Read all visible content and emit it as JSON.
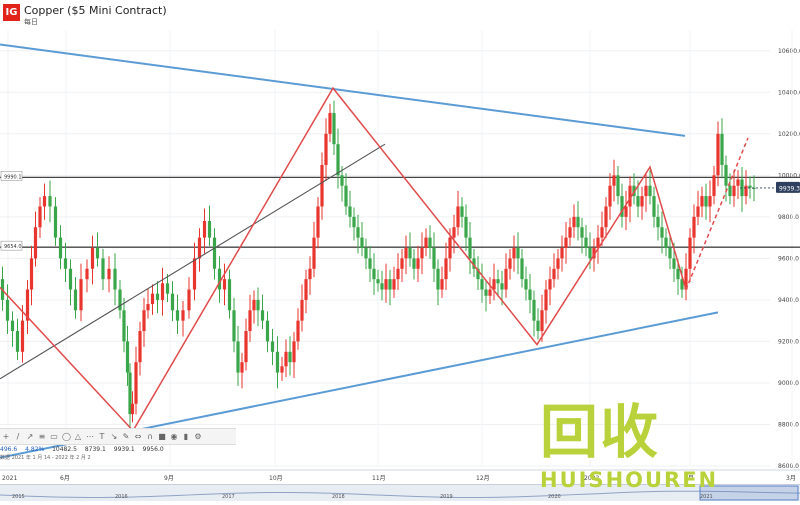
{
  "header": {
    "logo_text": "IG",
    "title": "Copper ($5 Mini Contract)",
    "subtitle": "每日"
  },
  "colors": {
    "up": "#e8352e",
    "down": "#3aa64a",
    "blue_trend": "#5b9bd5",
    "red_pattern": "#e14a4a",
    "grey_trend": "#555555",
    "hline": "#444444",
    "price_badge": "#2f3f5f"
  },
  "toolbar": {
    "icons": [
      "crosshair-icon",
      "line-icon",
      "ray-icon",
      "channel-icon",
      "rectangle-icon",
      "ellipse-icon",
      "triangle-icon",
      "fib-icon",
      "text-icon",
      "arrow-icon",
      "pencil-icon",
      "measure-icon",
      "magnet-icon",
      "lock-icon",
      "eye-icon",
      "trash-icon",
      "settings-icon"
    ]
  },
  "infobar": {
    "items": [
      "496.6",
      "4.82%",
      "10482.5",
      "8739.1",
      "9939.1",
      "9956.0"
    ],
    "range_text": "数据 2021 年 1 月 14 - 2022 年 2 月 2"
  },
  "watermark": {
    "cn": "回收",
    "en": "HUISHOUREN"
  },
  "chart_data": {
    "type": "candlestick",
    "title": "Copper ($5 Mini Contract)",
    "y_axis": {
      "ticks": [
        "10600.0",
        "10400.0",
        "10200.0",
        "10000.0",
        "9800.0",
        "9600.0",
        "9400.0",
        "9200.0",
        "9000.0",
        "8800.0",
        "8600.0"
      ],
      "range": [
        8600,
        10700
      ]
    },
    "x_axis": {
      "labels": [
        "2021",
        "6月",
        "9月",
        "10月",
        "11月",
        "12月",
        "2022",
        "2月",
        "3月"
      ]
    },
    "navigator_labels": [
      "2015",
      "2016",
      "2017",
      "2018",
      "2019",
      "2020",
      "2021"
    ],
    "horizontal_levels": [
      {
        "label": "9990.1",
        "value": 9990
      },
      {
        "label": "9654.0",
        "value": 9654
      }
    ],
    "current_price": "9939.3",
    "price_path": [
      [
        0,
        9500
      ],
      [
        5,
        9400
      ],
      [
        10,
        9300
      ],
      [
        15,
        9250
      ],
      [
        20,
        9150
      ],
      [
        25,
        9300
      ],
      [
        30,
        9450
      ],
      [
        33,
        9600
      ],
      [
        38,
        9750
      ],
      [
        42,
        9850
      ],
      [
        47,
        9900
      ],
      [
        53,
        9850
      ],
      [
        58,
        9700
      ],
      [
        63,
        9600
      ],
      [
        68,
        9550
      ],
      [
        73,
        9450
      ],
      [
        78,
        9350
      ],
      [
        84,
        9500
      ],
      [
        90,
        9550
      ],
      [
        95,
        9650
      ],
      [
        100,
        9600
      ],
      [
        106,
        9500
      ],
      [
        112,
        9550
      ],
      [
        118,
        9450
      ],
      [
        122,
        9350
      ],
      [
        126,
        9200
      ],
      [
        129,
        9050
      ],
      [
        131,
        8850
      ],
      [
        134,
        8900
      ],
      [
        138,
        9100
      ],
      [
        142,
        9250
      ],
      [
        146,
        9350
      ],
      [
        150,
        9380
      ],
      [
        155,
        9430
      ],
      [
        160,
        9400
      ],
      [
        165,
        9480
      ],
      [
        170,
        9430
      ],
      [
        175,
        9350
      ],
      [
        180,
        9300
      ],
      [
        186,
        9350
      ],
      [
        192,
        9450
      ],
      [
        197,
        9600
      ],
      [
        202,
        9700
      ],
      [
        207,
        9780
      ],
      [
        212,
        9700
      ],
      [
        217,
        9550
      ],
      [
        222,
        9450
      ],
      [
        227,
        9500
      ],
      [
        232,
        9350
      ],
      [
        236,
        9200
      ],
      [
        240,
        9050
      ],
      [
        244,
        9100
      ],
      [
        248,
        9250
      ],
      [
        252,
        9350
      ],
      [
        256,
        9400
      ],
      [
        260,
        9350
      ],
      [
        265,
        9300
      ],
      [
        270,
        9200
      ],
      [
        275,
        9150
      ],
      [
        280,
        9050
      ],
      [
        284,
        9080
      ],
      [
        288,
        9150
      ],
      [
        292,
        9100
      ],
      [
        296,
        9200
      ],
      [
        300,
        9300
      ],
      [
        304,
        9400
      ],
      [
        308,
        9500
      ],
      [
        312,
        9550
      ],
      [
        316,
        9700
      ],
      [
        320,
        9850
      ],
      [
        324,
        10050
      ],
      [
        328,
        10200
      ],
      [
        332,
        10300
      ],
      [
        336,
        10150
      ],
      [
        340,
        10000
      ],
      [
        344,
        9950
      ],
      [
        348,
        9850
      ],
      [
        352,
        9800
      ],
      [
        356,
        9750
      ],
      [
        360,
        9700
      ],
      [
        364,
        9650
      ],
      [
        368,
        9600
      ],
      [
        372,
        9550
      ],
      [
        376,
        9500
      ],
      [
        380,
        9480
      ],
      [
        384,
        9450
      ],
      [
        388,
        9500
      ],
      [
        392,
        9450
      ],
      [
        396,
        9500
      ],
      [
        400,
        9550
      ],
      [
        404,
        9600
      ],
      [
        408,
        9650
      ],
      [
        412,
        9600
      ],
      [
        416,
        9550
      ],
      [
        420,
        9600
      ],
      [
        424,
        9650
      ],
      [
        428,
        9700
      ],
      [
        432,
        9650
      ],
      [
        436,
        9550
      ],
      [
        440,
        9450
      ],
      [
        444,
        9500
      ],
      [
        448,
        9600
      ],
      [
        452,
        9700
      ],
      [
        456,
        9750
      ],
      [
        460,
        9850
      ],
      [
        464,
        9800
      ],
      [
        468,
        9700
      ],
      [
        472,
        9600
      ],
      [
        476,
        9550
      ],
      [
        480,
        9500
      ],
      [
        484,
        9450
      ],
      [
        488,
        9420
      ],
      [
        492,
        9450
      ],
      [
        496,
        9500
      ],
      [
        500,
        9480
      ],
      [
        504,
        9450
      ],
      [
        508,
        9550
      ],
      [
        512,
        9600
      ],
      [
        516,
        9650
      ],
      [
        520,
        9600
      ],
      [
        524,
        9500
      ],
      [
        528,
        9450
      ],
      [
        532,
        9400
      ],
      [
        536,
        9300
      ],
      [
        540,
        9250
      ],
      [
        544,
        9350
      ],
      [
        548,
        9450
      ],
      [
        552,
        9500
      ],
      [
        556,
        9550
      ],
      [
        560,
        9600
      ],
      [
        564,
        9650
      ],
      [
        568,
        9700
      ],
      [
        572,
        9750
      ],
      [
        576,
        9800
      ],
      [
        580,
        9750
      ],
      [
        584,
        9700
      ],
      [
        588,
        9650
      ],
      [
        592,
        9600
      ],
      [
        596,
        9650
      ],
      [
        600,
        9700
      ],
      [
        604,
        9750
      ],
      [
        608,
        9850
      ],
      [
        612,
        9950
      ],
      [
        616,
        10000
      ],
      [
        620,
        9900
      ],
      [
        624,
        9800
      ],
      [
        628,
        9850
      ],
      [
        632,
        9950
      ],
      [
        636,
        9900
      ],
      [
        640,
        9850
      ],
      [
        644,
        9900
      ],
      [
        648,
        9950
      ],
      [
        652,
        9900
      ],
      [
        656,
        9800
      ],
      [
        660,
        9750
      ],
      [
        664,
        9700
      ],
      [
        668,
        9650
      ],
      [
        672,
        9600
      ],
      [
        676,
        9550
      ],
      [
        680,
        9500
      ],
      [
        684,
        9450
      ],
      [
        688,
        9550
      ],
      [
        692,
        9700
      ],
      [
        696,
        9800
      ],
      [
        700,
        9850
      ],
      [
        704,
        9900
      ],
      [
        708,
        9850
      ],
      [
        712,
        9900
      ],
      [
        716,
        10000
      ],
      [
        720,
        10200
      ],
      [
        724,
        10050
      ],
      [
        728,
        9950
      ],
      [
        732,
        9900
      ],
      [
        736,
        9950
      ],
      [
        740,
        9980
      ],
      [
        744,
        9900
      ],
      [
        748,
        9950
      ],
      [
        752,
        9940
      ],
      [
        756,
        9939
      ]
    ],
    "trendlines": {
      "blue_upper": [
        [
          0,
          10630
        ],
        [
          685,
          10190
        ]
      ],
      "blue_lower": [
        [
          0,
          8640
        ],
        [
          718,
          9340
        ]
      ],
      "grey_channel": [
        [
          0,
          9020
        ],
        [
          385,
          10150
        ]
      ],
      "red_zigzag": [
        [
          0,
          9460
        ],
        [
          133,
          8770
        ],
        [
          333,
          10420
        ],
        [
          537,
          9185
        ],
        [
          650,
          10040
        ],
        [
          686,
          9450
        ]
      ],
      "red_dashed": [
        [
          686,
          9450
        ],
        [
          748,
          10180
        ]
      ]
    }
  }
}
